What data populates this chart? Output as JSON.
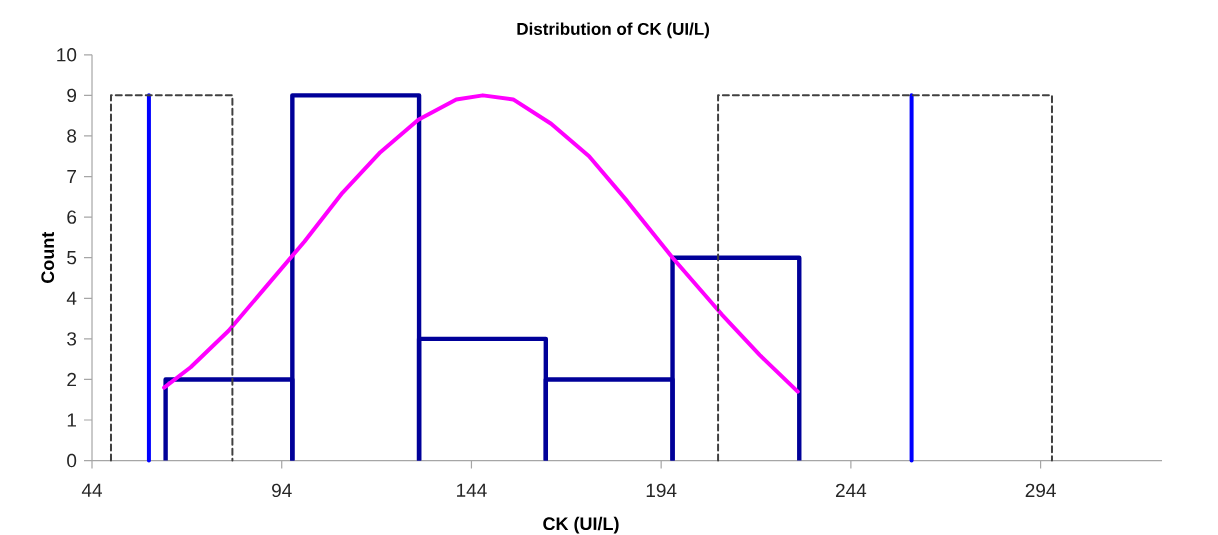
{
  "chart_data": {
    "type": "histogram",
    "title": "Distribution of CK (UI/L)",
    "xlabel": "CK (UI/L)",
    "ylabel": "Count",
    "bins": [
      63.4,
      96.8,
      130.2,
      163.6,
      197,
      230.4
    ],
    "values": [
      2,
      9,
      3,
      2,
      5
    ],
    "color": "#000099",
    "series": [
      {
        "type": "line",
        "color": "#ff00ff",
        "line_style": "solid",
        "x": [
          63,
          70,
          80,
          90,
          100,
          110,
          120,
          130,
          140,
          147,
          155,
          165,
          175,
          185,
          197,
          210,
          220,
          230
        ],
        "values": [
          1.8,
          2.3,
          3.2,
          4.3,
          5.4,
          6.6,
          7.6,
          8.4,
          8.9,
          9,
          8.9,
          8.3,
          7.5,
          6.4,
          5,
          3.6,
          2.6,
          1.7
        ]
      },
      {
        "type": "line",
        "color": "#0000ff",
        "line_style": "solid",
        "x": [
          59,
          59
        ],
        "values": [
          0,
          9
        ]
      },
      {
        "type": "line",
        "color": "#0000ff",
        "line_style": "solid",
        "x": [
          260,
          260
        ],
        "values": [
          0,
          9
        ]
      },
      {
        "type": "line",
        "color": "#404040",
        "line_style": "dashed",
        "x": [
          49,
          49,
          81,
          81
        ],
        "values": [
          0,
          9,
          9,
          0
        ]
      },
      {
        "type": "line",
        "color": "#404040",
        "line_style": "dashed",
        "x": [
          209,
          209,
          297,
          297
        ],
        "values": [
          0,
          9,
          9,
          0
        ]
      }
    ],
    "xlim": [
      44,
      326
    ],
    "ylim": [
      0,
      10
    ],
    "xticks": [
      44,
      94,
      144,
      194,
      244,
      294
    ],
    "yticks": [
      0,
      1,
      2,
      3,
      4,
      5,
      6,
      7,
      8,
      9,
      10
    ]
  }
}
